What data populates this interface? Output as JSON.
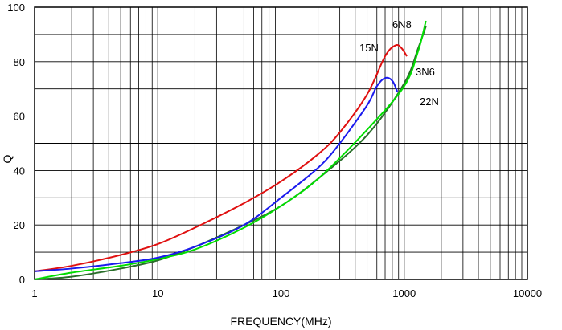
{
  "chart_data": {
    "type": "line",
    "xlabel": "FREQUENCY(MHz)",
    "ylabel": "Q",
    "x_scale": "log",
    "xlim": [
      1,
      10000
    ],
    "ylim": [
      0,
      100
    ],
    "grid": true,
    "x_ticks": [
      "1",
      "10",
      "100",
      "1000",
      "10000"
    ],
    "y_ticks": [
      "0",
      "20",
      "40",
      "60",
      "80",
      "100"
    ],
    "series": [
      {
        "name": "6N8",
        "color": "#2a6f2a",
        "x": [
          1,
          2,
          5,
          10,
          20,
          50,
          100,
          200,
          500,
          1000,
          1300,
          1500
        ],
        "y": [
          0,
          1,
          4,
          7,
          12,
          20,
          27,
          37,
          53,
          72,
          85,
          93
        ]
      },
      {
        "name": "3N6",
        "color": "#00dd00",
        "x": [
          1,
          2,
          5,
          10,
          20,
          50,
          100,
          200,
          500,
          1000,
          1300,
          1500
        ],
        "y": [
          0,
          2.5,
          5,
          7.5,
          11,
          19,
          27,
          37,
          55,
          71,
          84,
          95
        ]
      },
      {
        "name": "15N",
        "color": "#e01010",
        "x": [
          1,
          2,
          5,
          10,
          20,
          50,
          100,
          200,
          300,
          500,
          700,
          850,
          950,
          1050
        ],
        "y": [
          3,
          5,
          9,
          13,
          19,
          28,
          36,
          46,
          54,
          68,
          82,
          86,
          85,
          82
        ]
      },
      {
        "name": "22N",
        "color": "#1a1aee",
        "x": [
          1,
          2,
          5,
          10,
          20,
          50,
          100,
          200,
          300,
          500,
          600,
          700,
          800,
          880
        ],
        "y": [
          3,
          4,
          6,
          8,
          12,
          20,
          30,
          41,
          50,
          64,
          71,
          74,
          73,
          69
        ]
      }
    ]
  }
}
